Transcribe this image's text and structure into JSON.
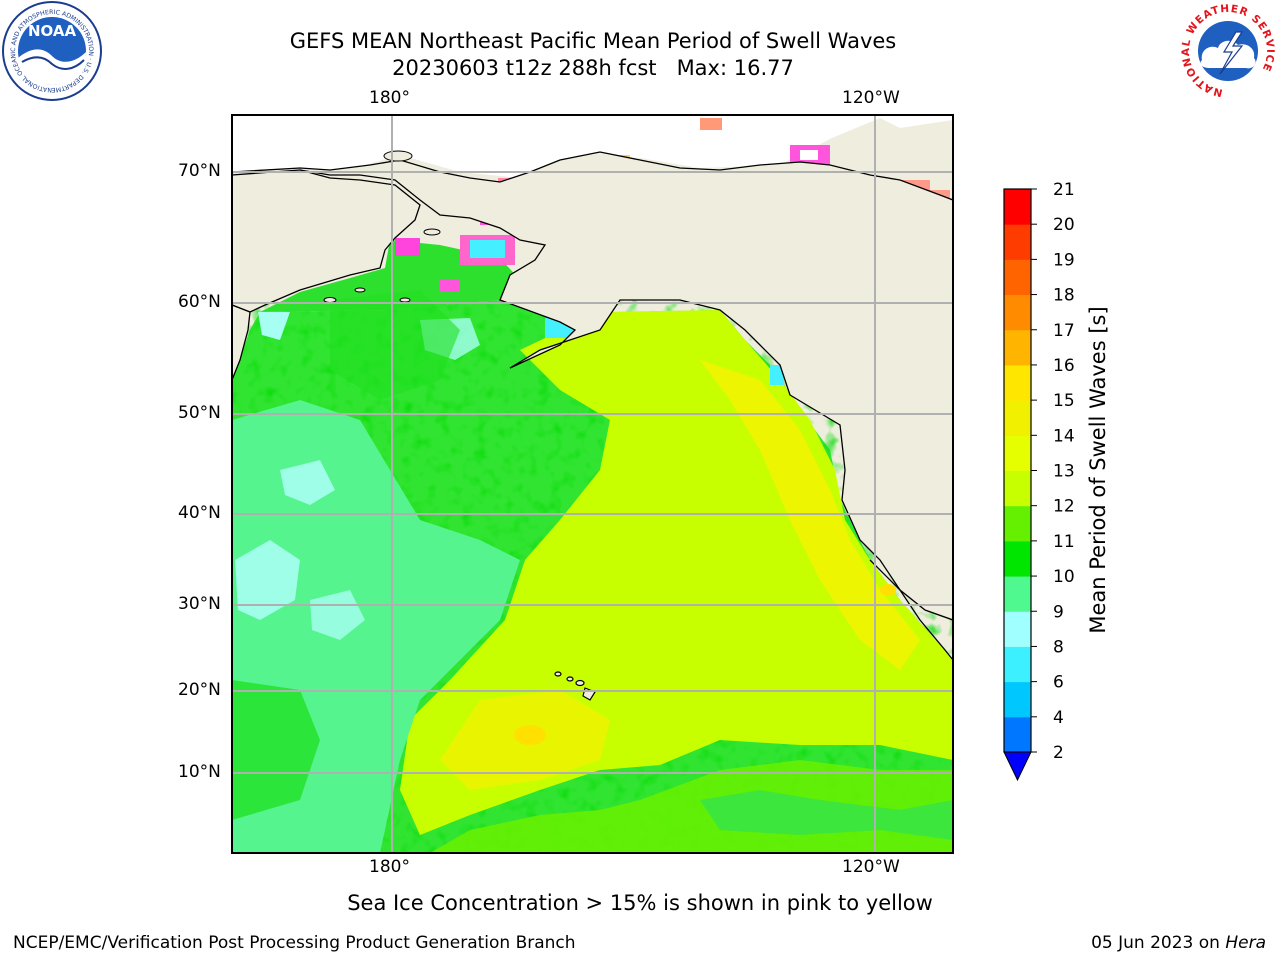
{
  "header": {
    "title_line1": "GEFS MEAN Northeast Pacific Mean Period of Swell Waves",
    "title_line2": "20230603 t12z 288h fcst   Max: 16.77"
  },
  "logos": {
    "noaa_text": "NOAA",
    "noaa_ring": "NATIONAL OCEANIC AND ATMOSPHERIC ADMINISTRATION · U.S. DEPARTMENT OF COMMERCE",
    "nws_ring": "NATIONAL WEATHER SERVICE"
  },
  "map": {
    "top_lon_labels": [
      "180°",
      "120°W"
    ],
    "bottom_lon_labels": [
      "180°",
      "120°W"
    ],
    "lat_labels": [
      "70°N",
      "60°N",
      "50°N",
      "40°N",
      "30°N",
      "20°N",
      "10°N"
    ],
    "colors": {
      "land": "#efedde",
      "gridline": "#b0b0b0",
      "coast": "#000000"
    }
  },
  "colorbar": {
    "label": "Mean Period of Swell Waves [s]",
    "ticks": [
      "2",
      "4",
      "6",
      "8",
      "9",
      "10",
      "11",
      "12",
      "13",
      "14",
      "15",
      "16",
      "17",
      "18",
      "19",
      "20",
      "21"
    ],
    "colors": [
      "#0077ff",
      "#00c8ff",
      "#3cf0ff",
      "#a0ffff",
      "#50f890",
      "#00e600",
      "#64f000",
      "#c8ff00",
      "#e6ff00",
      "#f0f000",
      "#ffe600",
      "#ffb400",
      "#ff8c00",
      "#ff6400",
      "#ff3c00",
      "#ff0000"
    ],
    "under_color": "#0000ff"
  },
  "caption": "Sea Ice Concentration > 15% is shown in pink to yellow",
  "footer": {
    "left": "NCEP/EMC/Verification Post Processing Product Generation Branch",
    "right_prefix": "05 Jun 2023 on ",
    "right_host": "Hera"
  }
}
